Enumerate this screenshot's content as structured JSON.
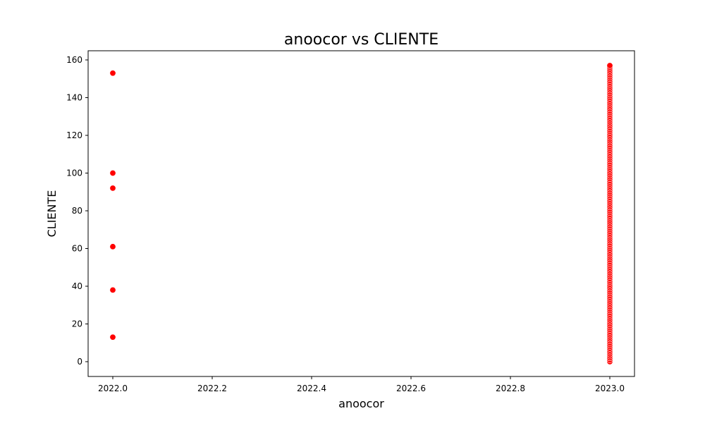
{
  "chart_data": {
    "type": "scatter",
    "title": "anoocor vs CLIENTE",
    "xlabel": "anoocor",
    "ylabel": "CLIENTE",
    "xlim": [
      1999.95,
      2023.05
    ],
    "ylim": [
      -8,
      165
    ],
    "xticks": [
      2022.0,
      2022.2,
      2022.4,
      2022.6,
      2022.8,
      2023.0
    ],
    "xtick_labels": [
      "2022.0",
      "2022.2",
      "2022.4",
      "2022.6",
      "2022.8",
      "2023.0"
    ],
    "yticks": [
      0,
      20,
      40,
      60,
      80,
      100,
      120,
      140,
      160
    ],
    "ytick_labels": [
      "0",
      "20",
      "40",
      "60",
      "80",
      "100",
      "120",
      "140",
      "160"
    ],
    "grid": false,
    "marker_color": "#ff0000",
    "series": [
      {
        "x": [
          2022,
          2022,
          2022,
          2022,
          2022,
          2022
        ],
        "y": [
          13,
          38,
          61,
          92,
          100,
          153
        ]
      },
      {
        "x": [
          2023
        ],
        "y_range": [
          0,
          157
        ],
        "y_step": 1
      }
    ]
  }
}
